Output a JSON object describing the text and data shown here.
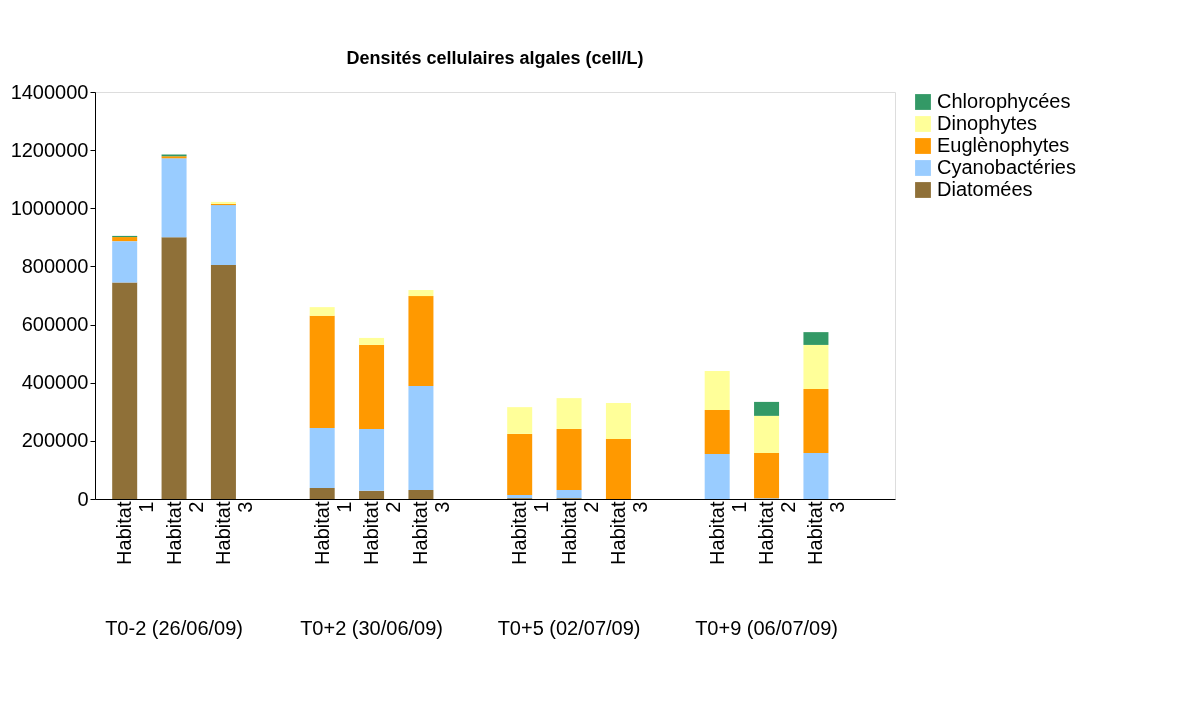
{
  "chart_data": {
    "type": "bar",
    "stacked": true,
    "title": "Densités cellulaires algales (cell/L)",
    "categories": [
      "Habitat 1",
      "Habitat 2",
      "Habitat 3",
      null,
      "Habitat 1",
      "Habitat 2",
      "Habitat 3",
      null,
      "Habitat 1",
      "Habitat 2",
      "Habitat 3",
      null,
      "Habitat 1",
      "Habitat 2",
      "Habitat 3",
      null
    ],
    "series": [
      {
        "name": "Diatomées",
        "color": "#8f7038",
        "values": [
          745000,
          900000,
          805000,
          null,
          38000,
          28000,
          31000,
          null,
          3000,
          3000,
          0,
          null,
          0,
          0,
          0,
          null
        ]
      },
      {
        "name": "Cyanobactéries",
        "color": "#99ccff",
        "values": [
          142000,
          272000,
          206000,
          null,
          206000,
          213000,
          358000,
          null,
          11000,
          28000,
          0,
          null,
          155000,
          3000,
          158000,
          null
        ]
      },
      {
        "name": "Euglènophytes",
        "color": "#ff9900",
        "values": [
          14000,
          7000,
          4000,
          null,
          386000,
          289000,
          309000,
          null,
          210000,
          210000,
          206000,
          null,
          151000,
          155000,
          220000,
          null
        ]
      },
      {
        "name": "Dinophytes",
        "color": "#ffff99",
        "values": [
          0,
          0,
          7000,
          null,
          30000,
          24000,
          21000,
          null,
          92000,
          106000,
          124000,
          null,
          134000,
          128000,
          152000,
          null
        ]
      },
      {
        "name": "Chlorophycées",
        "color": "#339966",
        "values": [
          4000,
          6000,
          0,
          null,
          0,
          0,
          0,
          null,
          0,
          0,
          0,
          null,
          0,
          48000,
          44000,
          null
        ]
      }
    ],
    "ylim": [
      0,
      1400000
    ],
    "yticks": [
      0,
      200000,
      400000,
      600000,
      800000,
      1000000,
      1200000,
      1400000
    ],
    "annotations": [
      "T0-2 (26/06/09)",
      "T0+2 (30/06/09)",
      "T0+5 (02/07/09)",
      "T0+9 (06/07/09)"
    ],
    "grid": false,
    "legend": "right"
  }
}
